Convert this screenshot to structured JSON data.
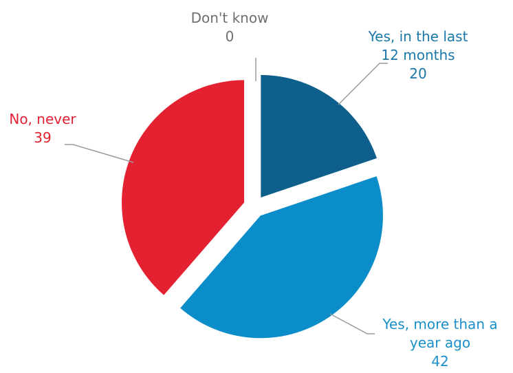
{
  "chart_data": {
    "type": "pie",
    "title": "",
    "slices": [
      {
        "label_lines": [
          "Yes, in the last",
          "12 months"
        ],
        "value": 20,
        "value_label": "20",
        "color": "#0e5f8c",
        "label_color": "#1a77a8"
      },
      {
        "label_lines": [
          "Yes, more than a",
          "year ago"
        ],
        "value": 42,
        "value_label": "42",
        "color": "#0b8dca",
        "label_color": "#1a8fc9"
      },
      {
        "label_lines": [
          "No, never"
        ],
        "value": 39,
        "value_label": "39",
        "color": "#e42131",
        "label_color": "#e42131"
      },
      {
        "label_lines": [
          "Don't know"
        ],
        "value": 0,
        "value_label": "0",
        "color": "#8c8c8c",
        "label_color": "#6e6e6e"
      }
    ],
    "leader_line_color": "#9a9a9a"
  }
}
